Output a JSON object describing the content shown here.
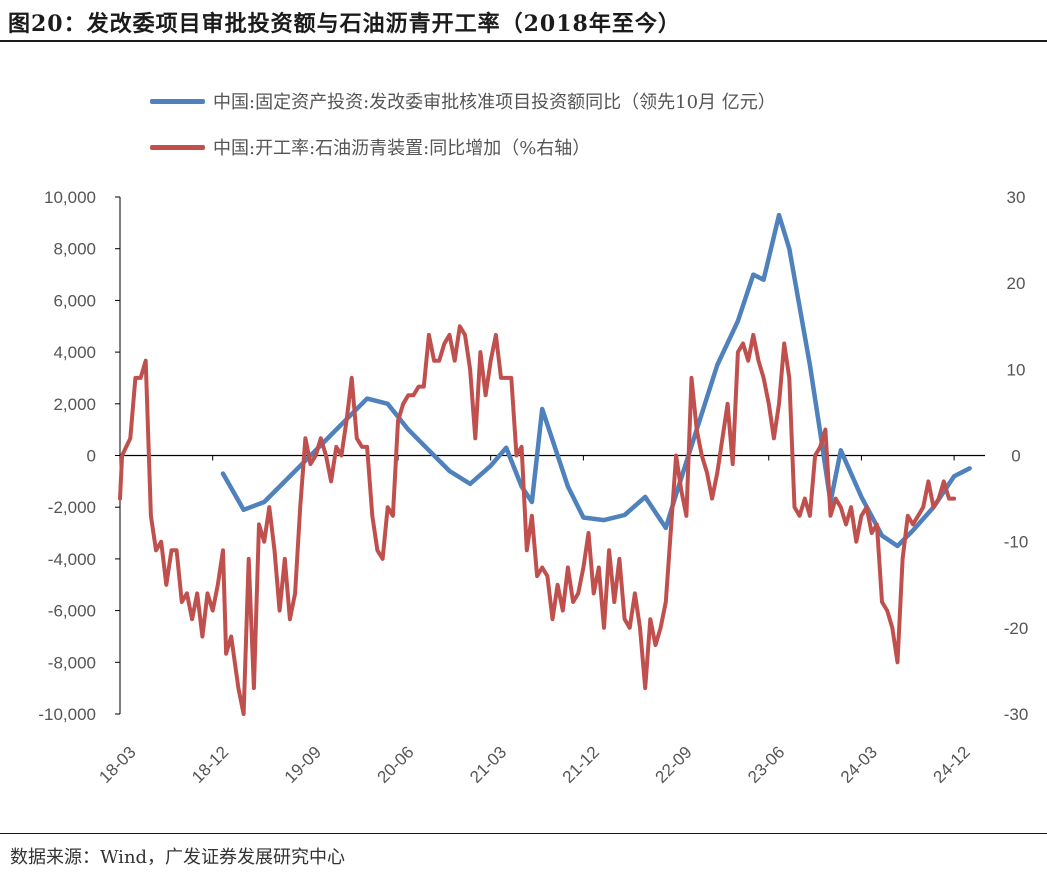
{
  "title": "图20：发改委项目审批投资额与石油沥青开工率（2018年至今）",
  "source": "数据来源：Wind，广发证券发展研究中心",
  "colors": {
    "blue": "#4f81bd",
    "red": "#c0504d",
    "axis": "#000000",
    "text": "#555555"
  },
  "chart_data": {
    "type": "line",
    "title": "发改委项目审批投资额与石油沥青开工率（2018年至今）",
    "legend_position": "top-left",
    "y_left": {
      "min": -10000,
      "max": 10000,
      "ticks": [
        "-10,000",
        "-8,000",
        "-6,000",
        "-4,000",
        "-2,000",
        "0",
        "2,000",
        "4,000",
        "6,000",
        "8,000",
        "10,000"
      ]
    },
    "y_right": {
      "min": -30,
      "max": 30,
      "ticks": [
        "-30",
        "-20",
        "-10",
        "0",
        "10",
        "20",
        "30"
      ]
    },
    "x_ticks": [
      "18-03",
      "18-12",
      "19-09",
      "20-06",
      "21-03",
      "21-12",
      "22-09",
      "23-06",
      "24-03",
      "24-12"
    ],
    "x_range": [
      0,
      84
    ],
    "series": [
      {
        "name": "中国:固定资产投资:发改委审批核准项目投资额同比（领先10月 亿元）",
        "axis": "left",
        "color": "#4f81bd",
        "points": [
          [
            10,
            -700
          ],
          [
            12,
            -2100
          ],
          [
            14,
            -1800
          ],
          [
            16,
            -1000
          ],
          [
            18,
            -200
          ],
          [
            20,
            600
          ],
          [
            22,
            1400
          ],
          [
            24,
            2200
          ],
          [
            26,
            2000
          ],
          [
            28,
            1000
          ],
          [
            30,
            200
          ],
          [
            32,
            -600
          ],
          [
            34,
            -1100
          ],
          [
            36,
            -400
          ],
          [
            37.5,
            300
          ],
          [
            39,
            -1200
          ],
          [
            40,
            -1800
          ],
          [
            41,
            1800
          ],
          [
            42,
            600
          ],
          [
            43.5,
            -1200
          ],
          [
            45,
            -2400
          ],
          [
            47,
            -2500
          ],
          [
            49,
            -2300
          ],
          [
            51,
            -1600
          ],
          [
            53,
            -2800
          ],
          [
            54,
            -1500
          ],
          [
            56,
            1000
          ],
          [
            58,
            3500
          ],
          [
            60,
            5200
          ],
          [
            61.5,
            7000
          ],
          [
            62.5,
            6800
          ],
          [
            64,
            9300
          ],
          [
            65,
            8000
          ],
          [
            67,
            3500
          ],
          [
            68,
            900
          ],
          [
            69,
            -1800
          ],
          [
            70,
            200
          ],
          [
            72,
            -1600
          ],
          [
            74,
            -3100
          ],
          [
            75.5,
            -3500
          ],
          [
            77,
            -2900
          ],
          [
            79,
            -2000
          ],
          [
            81,
            -800
          ],
          [
            82.5,
            -500
          ]
        ]
      },
      {
        "name": "中国:开工率:石油沥青装置:同比增加（%右轴）",
        "axis": "right",
        "color": "#c0504d",
        "points": [
          [
            0,
            -5
          ],
          [
            0.2,
            0
          ],
          [
            1,
            2
          ],
          [
            1.5,
            9
          ],
          [
            2,
            9
          ],
          [
            2.5,
            11
          ],
          [
            3,
            -7
          ],
          [
            3.5,
            -11
          ],
          [
            4,
            -10
          ],
          [
            4.5,
            -15
          ],
          [
            5,
            -11
          ],
          [
            5.5,
            -11
          ],
          [
            6,
            -17
          ],
          [
            6.5,
            -16
          ],
          [
            7,
            -19
          ],
          [
            7.5,
            -16
          ],
          [
            8,
            -21
          ],
          [
            8.5,
            -16
          ],
          [
            9,
            -18
          ],
          [
            9.5,
            -15
          ],
          [
            10,
            -11
          ],
          [
            10.3,
            -23
          ],
          [
            10.8,
            -21
          ],
          [
            11.5,
            -27
          ],
          [
            12,
            -30
          ],
          [
            12.5,
            -12
          ],
          [
            13,
            -27
          ],
          [
            13.5,
            -8
          ],
          [
            14,
            -10
          ],
          [
            14.5,
            -6
          ],
          [
            15,
            -11
          ],
          [
            15.5,
            -18
          ],
          [
            16,
            -12
          ],
          [
            16.5,
            -19
          ],
          [
            17,
            -16
          ],
          [
            17.5,
            -6
          ],
          [
            18,
            2
          ],
          [
            18.5,
            -1
          ],
          [
            19,
            0
          ],
          [
            19.5,
            2
          ],
          [
            20,
            0
          ],
          [
            20.5,
            -3
          ],
          [
            21,
            1
          ],
          [
            21.5,
            0
          ],
          [
            22,
            4
          ],
          [
            22.5,
            9
          ],
          [
            23,
            2
          ],
          [
            23.5,
            1
          ],
          [
            24,
            1
          ],
          [
            24.5,
            -7
          ],
          [
            25,
            -11
          ],
          [
            25.5,
            -12
          ],
          [
            26,
            -6
          ],
          [
            26.5,
            -7
          ],
          [
            27,
            4
          ],
          [
            27.5,
            6
          ],
          [
            28,
            7
          ],
          [
            28.5,
            7
          ],
          [
            29,
            8
          ],
          [
            29.5,
            8
          ],
          [
            30,
            14
          ],
          [
            30.5,
            11
          ],
          [
            31,
            11
          ],
          [
            31.5,
            13
          ],
          [
            32,
            14
          ],
          [
            32.5,
            11
          ],
          [
            33,
            15
          ],
          [
            33.5,
            14
          ],
          [
            34,
            10
          ],
          [
            34.5,
            2
          ],
          [
            35,
            12
          ],
          [
            35.5,
            7
          ],
          [
            36,
            11
          ],
          [
            36.5,
            14
          ],
          [
            37,
            9
          ],
          [
            37.5,
            9
          ],
          [
            38,
            9
          ],
          [
            38.5,
            0
          ],
          [
            39,
            1
          ],
          [
            39.5,
            -11
          ],
          [
            40,
            -7
          ],
          [
            40.5,
            -14
          ],
          [
            41,
            -13
          ],
          [
            41.5,
            -14
          ],
          [
            42,
            -19
          ],
          [
            42.5,
            -15
          ],
          [
            43,
            -18
          ],
          [
            43.5,
            -13
          ],
          [
            44,
            -17
          ],
          [
            44.5,
            -16
          ],
          [
            45,
            -13
          ],
          [
            45.5,
            -9
          ],
          [
            46,
            -16
          ],
          [
            46.5,
            -13
          ],
          [
            47,
            -20
          ],
          [
            47.5,
            -11
          ],
          [
            48,
            -17
          ],
          [
            48.5,
            -12
          ],
          [
            49,
            -19
          ],
          [
            49.5,
            -20
          ],
          [
            50,
            -16
          ],
          [
            50.5,
            -20
          ],
          [
            51,
            -27
          ],
          [
            51.5,
            -19
          ],
          [
            52,
            -22
          ],
          [
            52.5,
            -20
          ],
          [
            53,
            -17
          ],
          [
            54,
            0
          ],
          [
            54.5,
            -4
          ],
          [
            55,
            -7
          ],
          [
            55.5,
            9
          ],
          [
            56,
            3
          ],
          [
            56.5,
            0
          ],
          [
            57,
            -2
          ],
          [
            57.5,
            -5
          ],
          [
            58,
            -2
          ],
          [
            59,
            6
          ],
          [
            59.5,
            -1
          ],
          [
            60,
            12
          ],
          [
            60.5,
            13
          ],
          [
            61,
            11
          ],
          [
            61.5,
            14
          ],
          [
            62,
            11
          ],
          [
            62.5,
            9
          ],
          [
            63,
            6
          ],
          [
            63.5,
            2
          ],
          [
            64,
            6
          ],
          [
            64.5,
            13
          ],
          [
            65,
            9
          ],
          [
            65.5,
            -6
          ],
          [
            66,
            -7
          ],
          [
            66.5,
            -5
          ],
          [
            67,
            -7
          ],
          [
            67.5,
            0
          ],
          [
            68,
            1
          ],
          [
            68.5,
            3
          ],
          [
            69,
            -7
          ],
          [
            69.5,
            -5
          ],
          [
            70,
            -6
          ],
          [
            70.5,
            -8
          ],
          [
            71,
            -6
          ],
          [
            71.5,
            -10
          ],
          [
            72,
            -7
          ],
          [
            72.5,
            -6
          ],
          [
            73,
            -9
          ],
          [
            73.5,
            -8
          ],
          [
            74,
            -17
          ],
          [
            74.5,
            -18
          ],
          [
            75,
            -20
          ],
          [
            75.5,
            -24
          ],
          [
            76,
            -12
          ],
          [
            76.5,
            -7
          ],
          [
            77,
            -8
          ],
          [
            77.5,
            -7
          ],
          [
            78,
            -6
          ],
          [
            78.5,
            -3
          ],
          [
            79,
            -6
          ],
          [
            79.5,
            -5
          ],
          [
            80,
            -3
          ],
          [
            80.5,
            -5
          ],
          [
            81,
            -5
          ]
        ]
      }
    ]
  }
}
